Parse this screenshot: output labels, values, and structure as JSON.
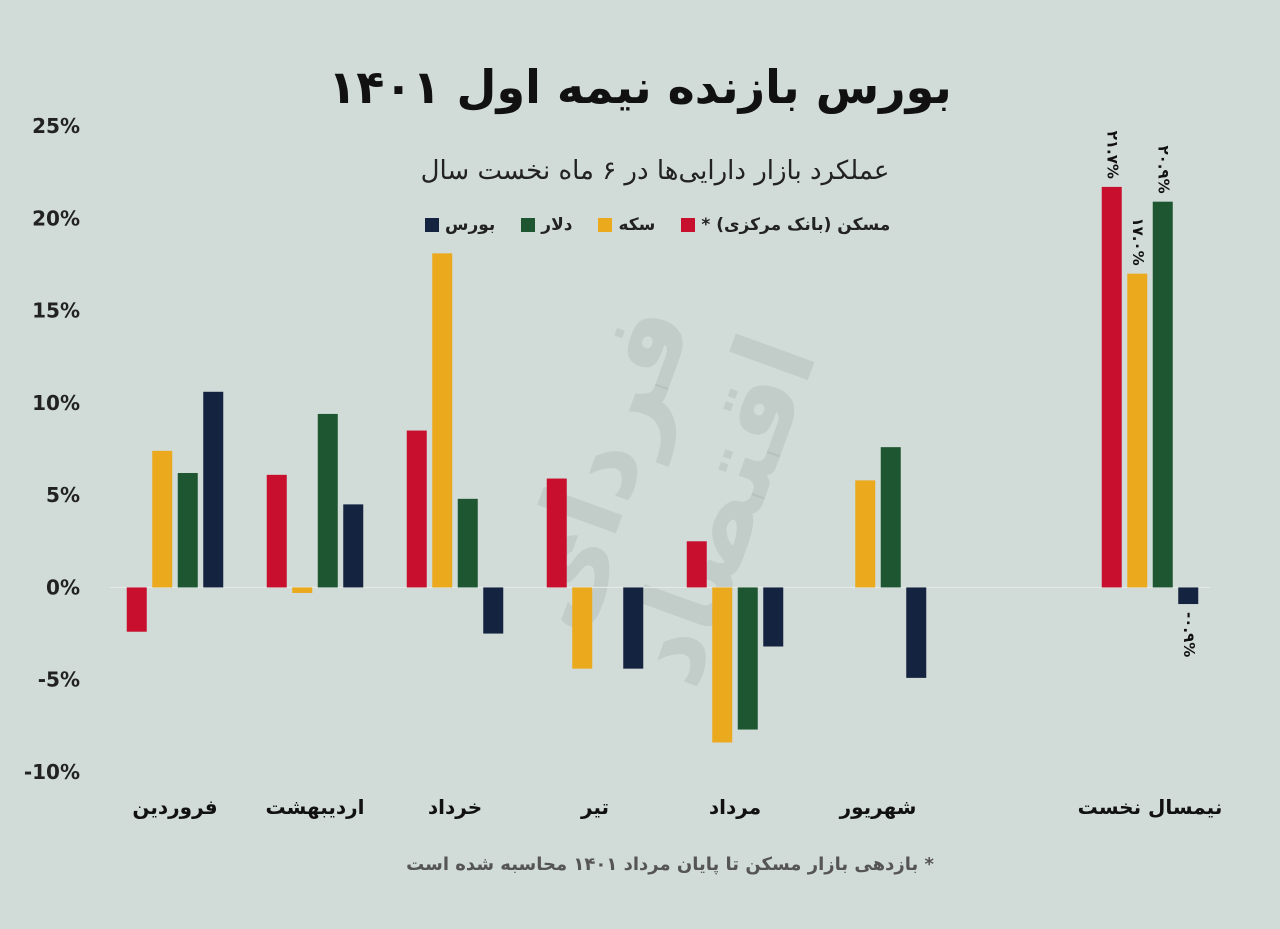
{
  "title": "بورس بازنده نیمه اول ۱۴۰۱",
  "subtitle": "عملکرد بازار دارایی‌ها در ۶ ماه نخست سال",
  "footnote": "* بازدهی بازار مسکن تا پایان مرداد ۱۴۰۱ محاسبه شده است",
  "watermark": "فردای اقتصاد",
  "colors": {
    "background": "#d1dbd8",
    "housing": "#c8102e",
    "coin": "#eba91e",
    "dollar": "#1e5631",
    "stock": "#14233f"
  },
  "chart_data": {
    "type": "bar",
    "categories": [
      "فروردین",
      "اردیبهشت",
      "خرداد",
      "تیر",
      "مرداد",
      "شهریور",
      "نیمسال نخست"
    ],
    "ylim": [
      -10,
      25
    ],
    "yticks": [
      25,
      20,
      15,
      10,
      5,
      0,
      -5,
      -10
    ],
    "ytick_labels": [
      "25%",
      "20%",
      "15%",
      "10%",
      "5%",
      "0%",
      "-5%",
      "-10%"
    ],
    "grid": false,
    "legend_position": "top",
    "series": [
      {
        "name": "مسکن (بانک مرکزی) *",
        "color": "#c8102e",
        "values": [
          -2.4,
          6.1,
          8.5,
          5.9,
          2.5,
          null,
          21.7
        ]
      },
      {
        "name": "سکه",
        "color": "#eba91e",
        "values": [
          7.4,
          -0.3,
          18.1,
          -4.4,
          -8.4,
          5.8,
          17.0
        ]
      },
      {
        "name": "دلار",
        "color": "#1e5631",
        "values": [
          6.2,
          9.4,
          4.8,
          null,
          -7.7,
          7.6,
          20.9
        ]
      },
      {
        "name": "بورس",
        "color": "#14233f",
        "values": [
          10.6,
          4.5,
          -2.5,
          -4.4,
          -3.2,
          -4.9,
          -0.9
        ]
      }
    ],
    "data_labels": [
      {
        "series": 0,
        "category": 6,
        "text": "۲۱.۷%"
      },
      {
        "series": 1,
        "category": 6,
        "text": "۱۷.۰%"
      },
      {
        "series": 2,
        "category": 6,
        "text": "۲۰.۹%"
      },
      {
        "series": 3,
        "category": 6,
        "text": "-۰.۹%"
      }
    ]
  }
}
